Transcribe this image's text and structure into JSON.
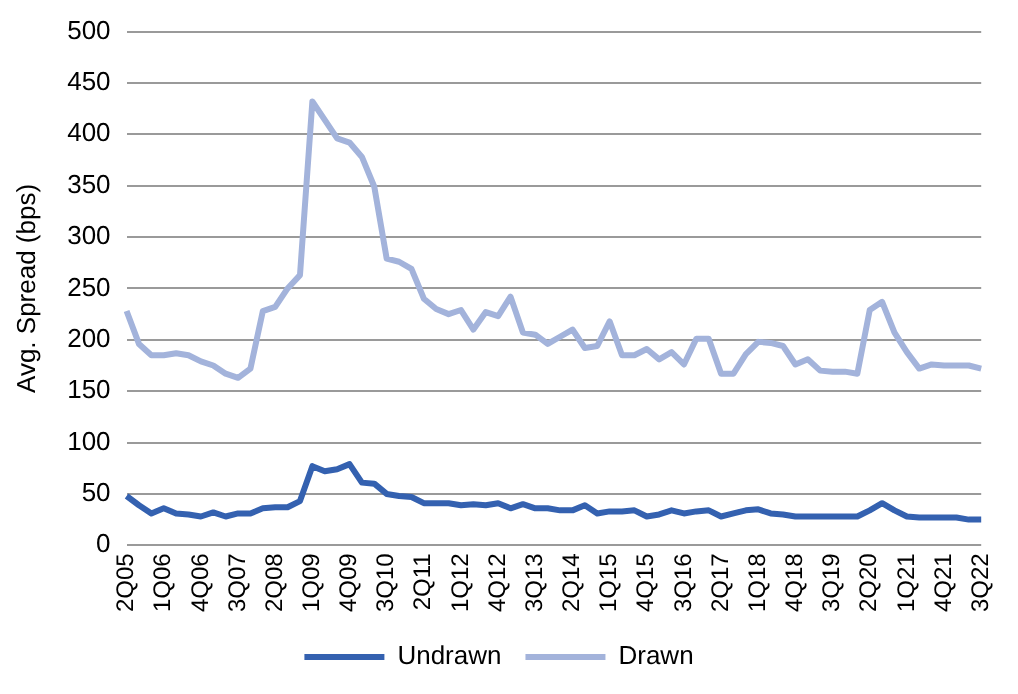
{
  "chart_data": {
    "type": "line",
    "ylabel": "Avg. Spread (bps)",
    "categories": [
      "2Q05",
      null,
      null,
      "1Q06",
      null,
      null,
      "4Q06",
      null,
      null,
      "3Q07",
      null,
      null,
      "2Q08",
      null,
      null,
      "1Q09",
      null,
      null,
      "4Q09",
      null,
      null,
      "3Q10",
      null,
      null,
      "2Q11",
      null,
      null,
      "1Q12",
      null,
      null,
      "4Q12",
      null,
      null,
      "3Q13",
      null,
      null,
      "2Q14",
      null,
      null,
      "1Q15",
      null,
      null,
      "4Q15",
      null,
      null,
      "3Q16",
      null,
      null,
      "2Q17",
      null,
      null,
      "1Q18",
      null,
      null,
      "4Q18",
      null,
      null,
      "3Q19",
      null,
      null,
      "2Q20",
      null,
      null,
      "1Q21",
      null,
      null,
      "4Q21",
      null,
      null,
      "3Q22"
    ],
    "series": [
      {
        "name": "Undrawn",
        "color": "#3461b0",
        "values": [
          48,
          39,
          31,
          36,
          31,
          30,
          28,
          32,
          28,
          31,
          31,
          36,
          37,
          37,
          43,
          77,
          72,
          74,
          79,
          61,
          60,
          50,
          48,
          47,
          41,
          41,
          41,
          39,
          40,
          39,
          41,
          36,
          40,
          36,
          36,
          34,
          34,
          39,
          31,
          33,
          33,
          34,
          28,
          30,
          34,
          31,
          33,
          34,
          28,
          31,
          34,
          35,
          31,
          30,
          28,
          28,
          28,
          28,
          28,
          28,
          34,
          41,
          34,
          28,
          27,
          27,
          27,
          27,
          25,
          25
        ]
      },
      {
        "name": "Drawn",
        "color": "#a3b3db",
        "values": [
          228,
          196,
          185,
          185,
          187,
          185,
          179,
          175,
          167,
          163,
          172,
          228,
          232,
          250,
          263,
          432,
          414,
          396,
          392,
          378,
          349,
          279,
          276,
          269,
          240,
          230,
          225,
          229,
          210,
          227,
          223,
          242,
          207,
          205,
          196,
          203,
          210,
          192,
          194,
          218,
          185,
          185,
          191,
          181,
          188,
          176,
          201,
          201,
          167,
          167,
          186,
          198,
          197,
          194,
          176,
          181,
          170,
          169,
          169,
          167,
          229,
          237,
          207,
          188,
          172,
          176,
          175,
          175,
          175,
          172
        ]
      }
    ],
    "ylim": [
      0,
      500
    ],
    "yticks": [
      0,
      50,
      100,
      150,
      200,
      250,
      300,
      350,
      400,
      450,
      500
    ],
    "grid": "y",
    "legend": "bottom",
    "marker": "none",
    "line_style": "solid"
  }
}
